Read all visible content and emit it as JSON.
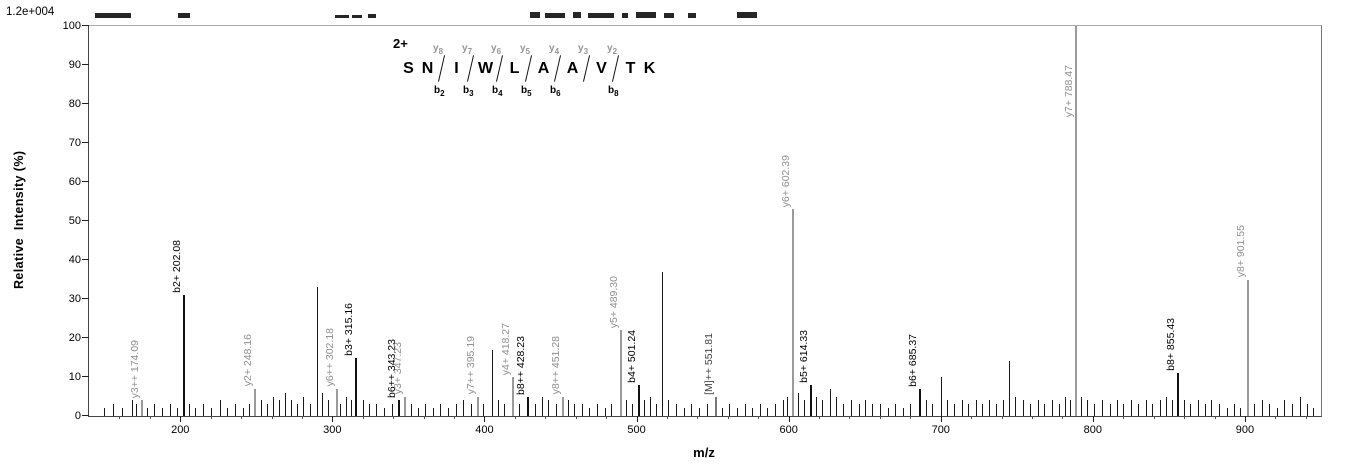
{
  "header": {
    "scale_label": "1.2e+004",
    "artifacts": [
      [
        95,
        36,
        5
      ],
      [
        178,
        12,
        5
      ],
      [
        335,
        14,
        3
      ],
      [
        352,
        10,
        3
      ],
      [
        368,
        8,
        4
      ],
      [
        530,
        10,
        6
      ],
      [
        545,
        20,
        5
      ],
      [
        573,
        8,
        6
      ],
      [
        588,
        26,
        5
      ],
      [
        622,
        6,
        5
      ],
      [
        636,
        20,
        6
      ],
      [
        664,
        10,
        5
      ],
      [
        688,
        8,
        5
      ],
      [
        737,
        20,
        6
      ]
    ]
  },
  "axes": {
    "y_title": "Relative  Intensity (%)",
    "x_title": "m/z"
  },
  "peptide": {
    "charge": "2+",
    "residues": [
      "S",
      "N",
      "I",
      "W",
      "L",
      "A",
      "A",
      "V",
      "T",
      "K"
    ],
    "fragments": [
      {
        "after": 2,
        "y": "y8",
        "b": "b2"
      },
      {
        "after": 3,
        "y": "y7",
        "b": "b3"
      },
      {
        "after": 4,
        "y": "y6",
        "b": "b4"
      },
      {
        "after": 5,
        "y": "y5",
        "b": "b5"
      },
      {
        "after": 6,
        "y": "y4",
        "b": "b6"
      },
      {
        "after": 7,
        "y": "y3",
        "b": ""
      },
      {
        "after": 8,
        "y": "y2",
        "b": "b8"
      }
    ]
  },
  "chart_data": {
    "type": "bar",
    "subtype": "mass-spectrum",
    "title": "",
    "xlabel": "m/z",
    "ylabel": "Relative Intensity (%)",
    "base_peak_intensity": "1.2e+004",
    "xlim": [
      140,
      950
    ],
    "ylim": [
      0,
      100
    ],
    "xticks": [
      200,
      300,
      400,
      500,
      600,
      700,
      800,
      900
    ],
    "yticks": [
      0,
      10,
      20,
      30,
      40,
      50,
      60,
      70,
      80,
      90,
      100
    ],
    "colors": {
      "b_ion": "#111111",
      "y_ion": "#9a9a9a",
      "precursor": "#777777",
      "noise": "#1a1a1a",
      "b_label": "#000000",
      "y_label": "#8f8f8f",
      "precursor_label": "#444444"
    },
    "labeled_peaks": [
      {
        "mz": 174.09,
        "intensity": 4,
        "label": "y3++ 174.09",
        "ion": "y"
      },
      {
        "mz": 202.08,
        "intensity": 31,
        "label": "b2+ 202.08",
        "ion": "b"
      },
      {
        "mz": 248.16,
        "intensity": 7,
        "label": "y2+ 248.16",
        "ion": "y"
      },
      {
        "mz": 302.18,
        "intensity": 7,
        "label": "y6++ 302.18",
        "ion": "y"
      },
      {
        "mz": 315.16,
        "intensity": 15,
        "label": "b3+ 315.16",
        "ion": "b"
      },
      {
        "mz": 343.23,
        "intensity": 4,
        "label": "b6++ 343.23",
        "ion": "b"
      },
      {
        "mz": 347.23,
        "intensity": 5,
        "label": "y3+ 347.23",
        "ion": "y"
      },
      {
        "mz": 395.19,
        "intensity": 5,
        "label": "y7++ 395.19",
        "ion": "y"
      },
      {
        "mz": 418.27,
        "intensity": 10,
        "label": "y4+ 418.27",
        "ion": "y"
      },
      {
        "mz": 428.23,
        "intensity": 5,
        "label": "b8++ 428.23",
        "ion": "b"
      },
      {
        "mz": 451.28,
        "intensity": 5,
        "label": "y8++ 451.28",
        "ion": "y"
      },
      {
        "mz": 489.3,
        "intensity": 22,
        "label": "y5+ 489.30",
        "ion": "y"
      },
      {
        "mz": 501.24,
        "intensity": 8,
        "label": "b4+ 501.24",
        "ion": "b"
      },
      {
        "mz": 551.81,
        "intensity": 5,
        "label": "[M]++ 551.81",
        "ion": "precursor"
      },
      {
        "mz": 602.39,
        "intensity": 53,
        "label": "y6+ 602.39",
        "ion": "y"
      },
      {
        "mz": 614.33,
        "intensity": 8,
        "label": "b5+ 614.33",
        "ion": "b"
      },
      {
        "mz": 685.37,
        "intensity": 7,
        "label": "b6+ 685.37",
        "ion": "b"
      },
      {
        "mz": 788.47,
        "intensity": 100,
        "label": "y7+ 788.47",
        "ion": "y"
      },
      {
        "mz": 855.43,
        "intensity": 11,
        "label": "b8+ 855.43",
        "ion": "b"
      },
      {
        "mz": 901.55,
        "intensity": 35,
        "label": "y8+ 901.55",
        "ion": "y"
      }
    ],
    "noise_peaks": [
      [
        150,
        2
      ],
      [
        156,
        3
      ],
      [
        162,
        2
      ],
      [
        168,
        4
      ],
      [
        171,
        3
      ],
      [
        178,
        2
      ],
      [
        183,
        3
      ],
      [
        188,
        2
      ],
      [
        193,
        3
      ],
      [
        198,
        2
      ],
      [
        206,
        3
      ],
      [
        210,
        2
      ],
      [
        215,
        3
      ],
      [
        220,
        2
      ],
      [
        226,
        4
      ],
      [
        231,
        2
      ],
      [
        236,
        3
      ],
      [
        241,
        2
      ],
      [
        245,
        3
      ],
      [
        253,
        4
      ],
      [
        257,
        3
      ],
      [
        261,
        5
      ],
      [
        265,
        4
      ],
      [
        269,
        6
      ],
      [
        273,
        4
      ],
      [
        277,
        3
      ],
      [
        281,
        5
      ],
      [
        285,
        3
      ],
      [
        290,
        33
      ],
      [
        293,
        6
      ],
      [
        297,
        4
      ],
      [
        305,
        3
      ],
      [
        309,
        5
      ],
      [
        312,
        4
      ],
      [
        320,
        4
      ],
      [
        324,
        3
      ],
      [
        329,
        3
      ],
      [
        334,
        2
      ],
      [
        339,
        3
      ],
      [
        352,
        3
      ],
      [
        356,
        2
      ],
      [
        361,
        3
      ],
      [
        366,
        2
      ],
      [
        371,
        3
      ],
      [
        376,
        2
      ],
      [
        381,
        3
      ],
      [
        386,
        4
      ],
      [
        391,
        3
      ],
      [
        399,
        3
      ],
      [
        405,
        17
      ],
      [
        409,
        4
      ],
      [
        413,
        3
      ],
      [
        423,
        3
      ],
      [
        433,
        3
      ],
      [
        438,
        5
      ],
      [
        442,
        4
      ],
      [
        447,
        3
      ],
      [
        455,
        4
      ],
      [
        459,
        3
      ],
      [
        464,
        3
      ],
      [
        469,
        2
      ],
      [
        474,
        3
      ],
      [
        479,
        2
      ],
      [
        483,
        3
      ],
      [
        493,
        4
      ],
      [
        497,
        3
      ],
      [
        505,
        4
      ],
      [
        509,
        5
      ],
      [
        513,
        3
      ],
      [
        517,
        37
      ],
      [
        521,
        4
      ],
      [
        526,
        3
      ],
      [
        531,
        2
      ],
      [
        536,
        3
      ],
      [
        541,
        2
      ],
      [
        546,
        3
      ],
      [
        556,
        2
      ],
      [
        561,
        3
      ],
      [
        566,
        2
      ],
      [
        571,
        3
      ],
      [
        576,
        2
      ],
      [
        581,
        3
      ],
      [
        586,
        2
      ],
      [
        591,
        3
      ],
      [
        596,
        4
      ],
      [
        599,
        5
      ],
      [
        606,
        6
      ],
      [
        610,
        4
      ],
      [
        618,
        5
      ],
      [
        622,
        4
      ],
      [
        627,
        7
      ],
      [
        631,
        5
      ],
      [
        636,
        3
      ],
      [
        641,
        4
      ],
      [
        646,
        3
      ],
      [
        650,
        4
      ],
      [
        655,
        3
      ],
      [
        660,
        3
      ],
      [
        665,
        2
      ],
      [
        670,
        3
      ],
      [
        675,
        2
      ],
      [
        680,
        3
      ],
      [
        690,
        4
      ],
      [
        694,
        3
      ],
      [
        700,
        10
      ],
      [
        704,
        4
      ],
      [
        709,
        3
      ],
      [
        714,
        4
      ],
      [
        718,
        3
      ],
      [
        723,
        4
      ],
      [
        727,
        3
      ],
      [
        732,
        4
      ],
      [
        736,
        3
      ],
      [
        741,
        4
      ],
      [
        745,
        14
      ],
      [
        749,
        5
      ],
      [
        754,
        4
      ],
      [
        759,
        3
      ],
      [
        764,
        4
      ],
      [
        768,
        3
      ],
      [
        773,
        4
      ],
      [
        778,
        3
      ],
      [
        782,
        5
      ],
      [
        785,
        4
      ],
      [
        792,
        5
      ],
      [
        796,
        4
      ],
      [
        801,
        3
      ],
      [
        806,
        4
      ],
      [
        811,
        3
      ],
      [
        816,
        4
      ],
      [
        820,
        3
      ],
      [
        825,
        4
      ],
      [
        830,
        3
      ],
      [
        835,
        4
      ],
      [
        839,
        3
      ],
      [
        844,
        4
      ],
      [
        848,
        5
      ],
      [
        852,
        4
      ],
      [
        860,
        4
      ],
      [
        864,
        3
      ],
      [
        869,
        4
      ],
      [
        874,
        3
      ],
      [
        878,
        4
      ],
      [
        883,
        3
      ],
      [
        888,
        2
      ],
      [
        893,
        3
      ],
      [
        897,
        2
      ],
      [
        906,
        3
      ],
      [
        911,
        4
      ],
      [
        916,
        3
      ],
      [
        921,
        2
      ],
      [
        926,
        4
      ],
      [
        931,
        3
      ],
      [
        936,
        5
      ],
      [
        941,
        3
      ],
      [
        945,
        2
      ]
    ]
  }
}
